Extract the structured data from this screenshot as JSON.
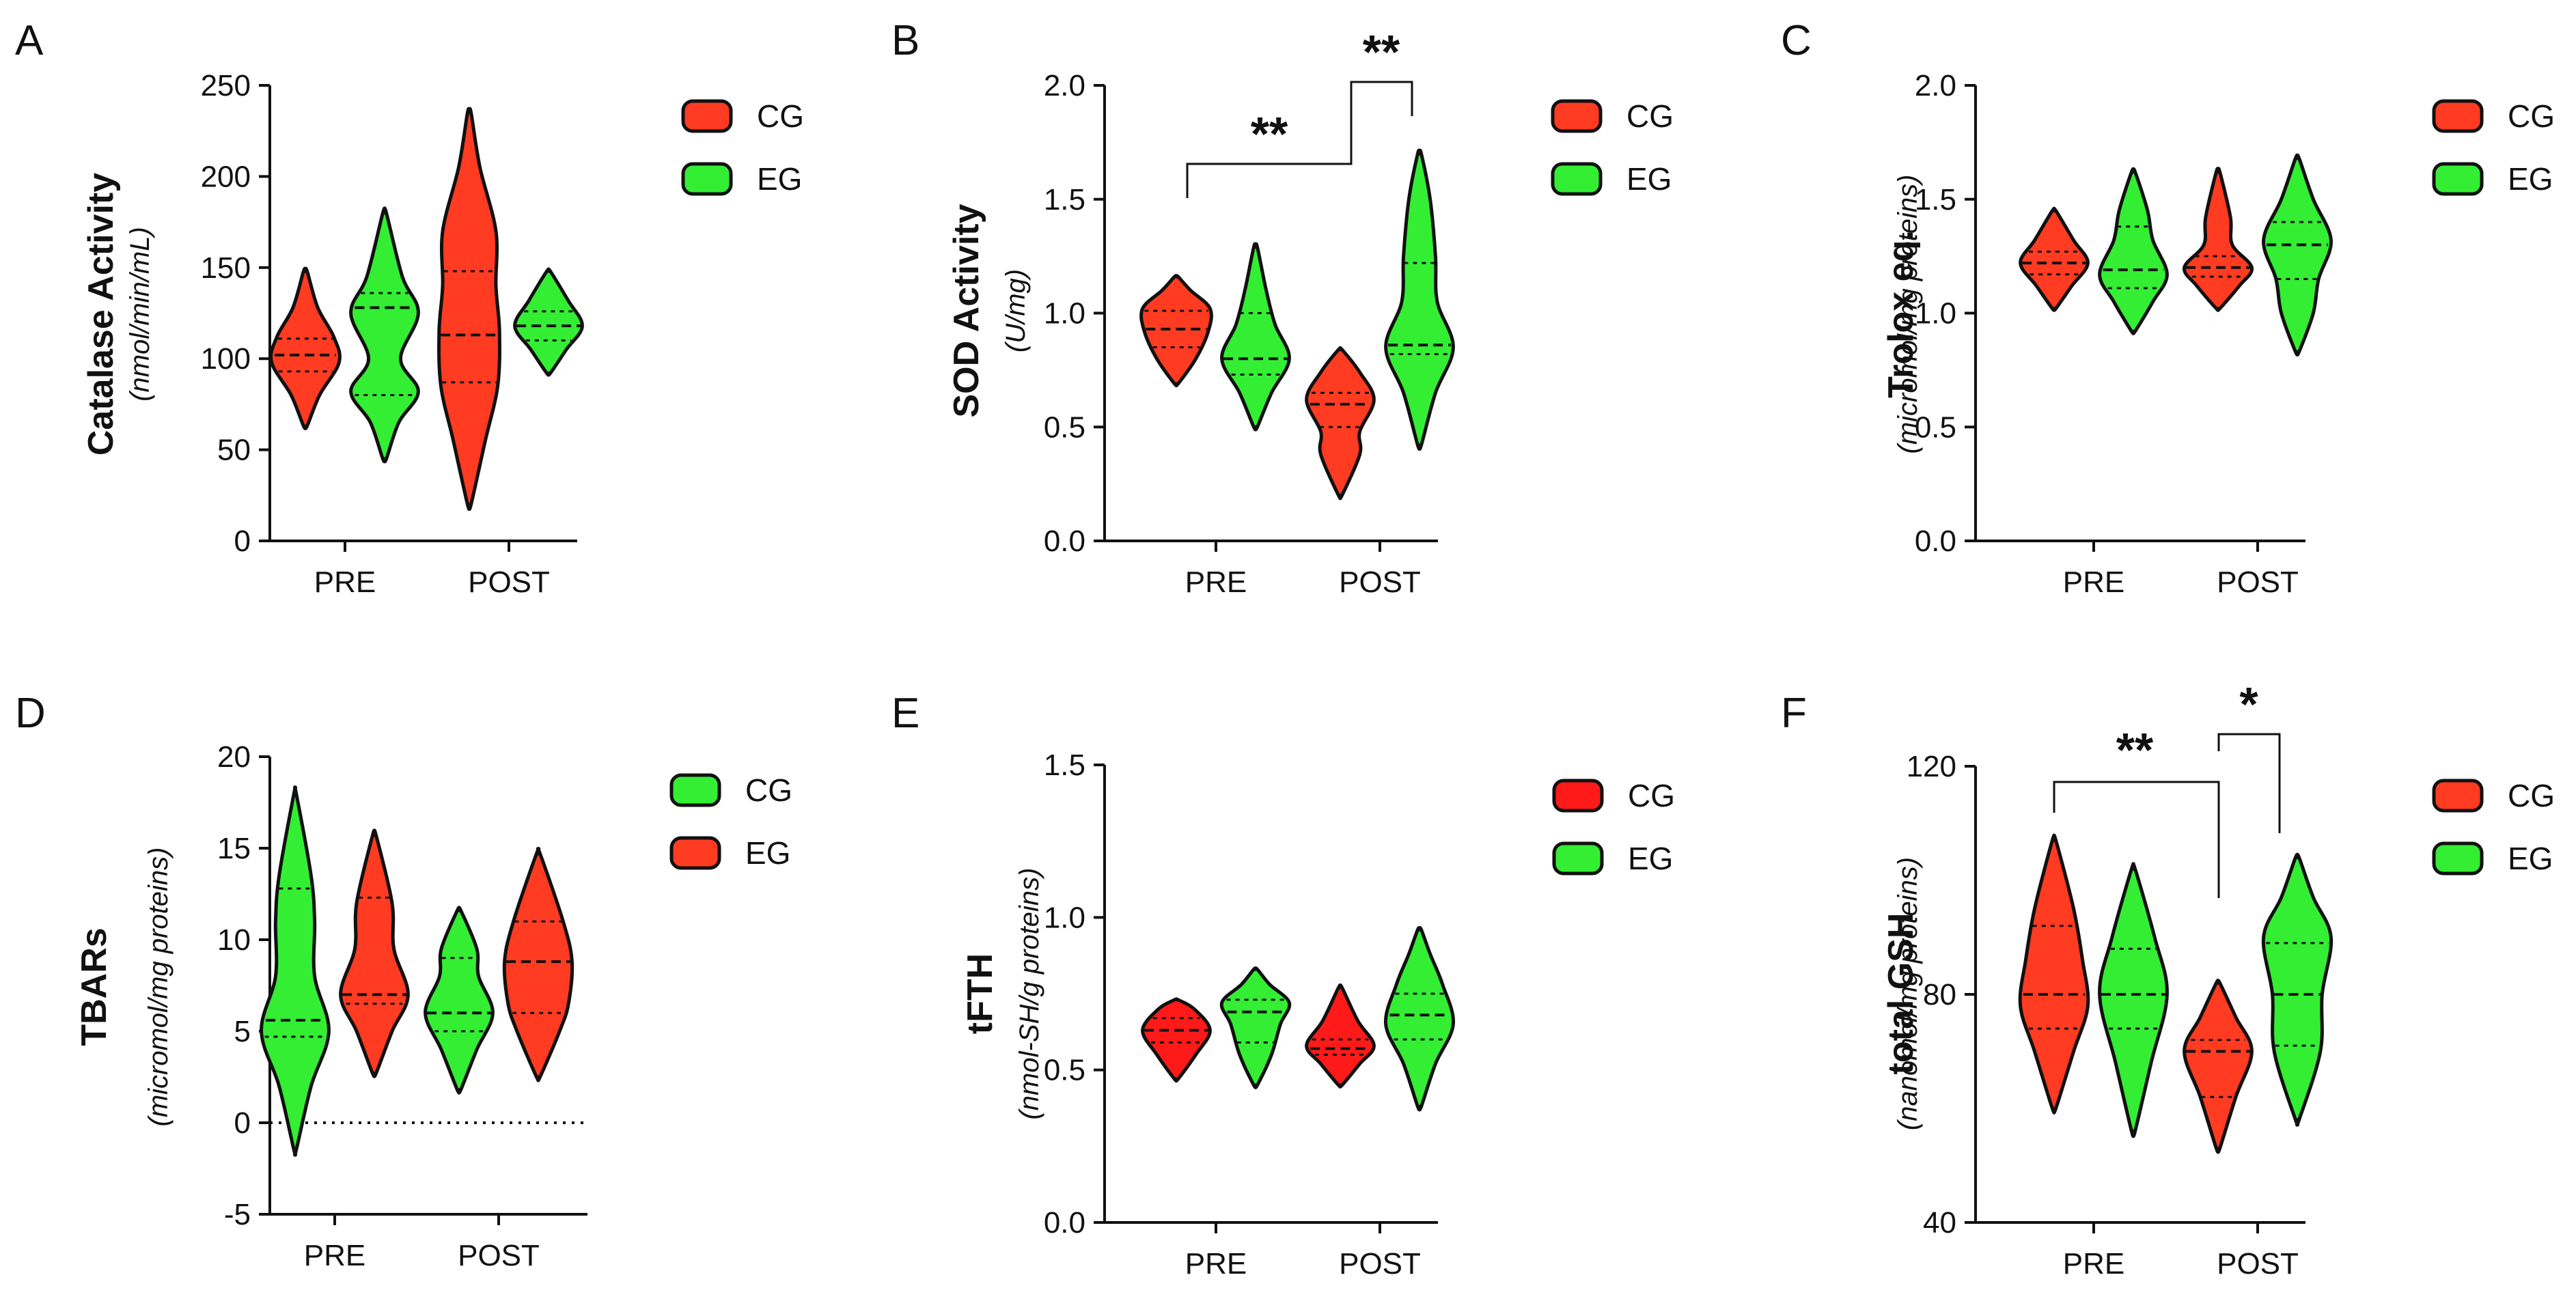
{
  "chart_data": [
    {
      "panel": "A",
      "type": "violin",
      "ylabel": "Catalase Activity",
      "yunit": "(nmol/min/mL)",
      "ylim": [
        0,
        250
      ],
      "yticks": [
        "0",
        "50",
        "100",
        "150",
        "200",
        "250"
      ],
      "ytick_values": [
        0,
        50,
        100,
        150,
        200,
        250
      ],
      "categories": [
        "PRE",
        "POST"
      ],
      "legend": [
        {
          "label": "CG",
          "color": "#ff3b22"
        },
        {
          "label": "EG",
          "color": "#33ee33"
        }
      ],
      "violins": [
        {
          "group": "CG",
          "category": "PRE",
          "color": "#ff3b22",
          "min": 63,
          "max": 148,
          "q1": 93,
          "median": 102,
          "q3": 111,
          "profile": [
            [
              63,
              0.05
            ],
            [
              80,
              0.4
            ],
            [
              98,
              0.95
            ],
            [
              112,
              0.8
            ],
            [
              128,
              0.35
            ],
            [
              148,
              0.05
            ]
          ]
        },
        {
          "group": "EG",
          "category": "PRE",
          "color": "#33ee33",
          "min": 45,
          "max": 180,
          "q1": 80,
          "median": 128,
          "q3": 136,
          "profile": [
            [
              45,
              0.05
            ],
            [
              65,
              0.4
            ],
            [
              82,
              0.95
            ],
            [
              100,
              0.45
            ],
            [
              125,
              0.95
            ],
            [
              145,
              0.5
            ],
            [
              180,
              0.05
            ]
          ]
        },
        {
          "group": "CG",
          "category": "POST",
          "color": "#ff3b22",
          "min": 20,
          "max": 235,
          "q1": 87,
          "median": 113,
          "q3": 148,
          "profile": [
            [
              20,
              0.05
            ],
            [
              55,
              0.45
            ],
            [
              85,
              0.8
            ],
            [
              115,
              0.85
            ],
            [
              140,
              0.75
            ],
            [
              170,
              0.75
            ],
            [
              205,
              0.3
            ],
            [
              235,
              0.05
            ]
          ]
        },
        {
          "group": "EG",
          "category": "POST",
          "color": "#33ee33",
          "min": 92,
          "max": 148,
          "q1": 110,
          "median": 118,
          "q3": 126,
          "profile": [
            [
              92,
              0.05
            ],
            [
              105,
              0.5
            ],
            [
              118,
              0.95
            ],
            [
              132,
              0.55
            ],
            [
              148,
              0.05
            ]
          ]
        }
      ]
    },
    {
      "panel": "B",
      "type": "violin",
      "ylabel": "SOD Activity",
      "yunit": "(U/mg)",
      "ylim": [
        0,
        2
      ],
      "yticks": [
        "0.0",
        "0.5",
        "1.0",
        "1.5",
        "2.0"
      ],
      "ytick_values": [
        0,
        0.5,
        1.0,
        1.5,
        2.0
      ],
      "categories": [
        "PRE",
        "POST"
      ],
      "legend": [
        {
          "label": "CG",
          "color": "#ff3b22"
        },
        {
          "label": "EG",
          "color": "#33ee33"
        }
      ],
      "violins": [
        {
          "group": "CG",
          "category": "PRE",
          "color": "#ff3b22",
          "min": 0.69,
          "max": 1.16,
          "q1": 0.85,
          "median": 0.93,
          "q3": 1.01,
          "profile": [
            [
              0.69,
              0.05
            ],
            [
              0.8,
              0.55
            ],
            [
              0.92,
              0.9
            ],
            [
              1.02,
              0.95
            ],
            [
              1.1,
              0.4
            ],
            [
              1.16,
              0.05
            ]
          ]
        },
        {
          "group": "EG",
          "category": "PRE",
          "color": "#33ee33",
          "min": 0.5,
          "max": 1.29,
          "q1": 0.73,
          "median": 0.8,
          "q3": 1.0,
          "profile": [
            [
              0.5,
              0.05
            ],
            [
              0.65,
              0.45
            ],
            [
              0.8,
              0.95
            ],
            [
              0.95,
              0.55
            ],
            [
              1.1,
              0.3
            ],
            [
              1.29,
              0.05
            ]
          ]
        },
        {
          "group": "CG",
          "category": "POST",
          "color": "#ff3b22",
          "min": 0.2,
          "max": 0.84,
          "q1": 0.5,
          "median": 0.6,
          "q3": 0.65,
          "profile": [
            [
              0.2,
              0.05
            ],
            [
              0.38,
              0.55
            ],
            [
              0.48,
              0.55
            ],
            [
              0.62,
              0.95
            ],
            [
              0.74,
              0.55
            ],
            [
              0.84,
              0.05
            ]
          ]
        },
        {
          "group": "EG",
          "category": "POST",
          "color": "#33ee33",
          "min": 0.42,
          "max": 1.7,
          "q1": 0.82,
          "median": 0.86,
          "q3": 1.22,
          "profile": [
            [
              0.42,
              0.05
            ],
            [
              0.65,
              0.45
            ],
            [
              0.85,
              0.95
            ],
            [
              1.05,
              0.5
            ],
            [
              1.25,
              0.45
            ],
            [
              1.5,
              0.3
            ],
            [
              1.7,
              0.05
            ]
          ]
        }
      ],
      "significance": [
        {
          "from": "CG PRE",
          "to": "CG POST",
          "label": "**"
        },
        {
          "from": "CG POST",
          "to": "EG POST",
          "label": "**"
        }
      ]
    },
    {
      "panel": "C",
      "type": "violin",
      "ylabel": "Trolox eq.",
      "yunit": "(micromol/mg proteins)",
      "ylim": [
        0,
        2
      ],
      "yticks": [
        "0.0",
        "0.5",
        "1.0",
        "1.5",
        "2.0"
      ],
      "ytick_values": [
        0,
        0.5,
        1.0,
        1.5,
        2.0
      ],
      "categories": [
        "PRE",
        "POST"
      ],
      "legend": [
        {
          "label": "CG",
          "color": "#ff3b22"
        },
        {
          "label": "EG",
          "color": "#33ee33"
        }
      ],
      "violins": [
        {
          "group": "CG",
          "category": "PRE",
          "color": "#ff3b22",
          "min": 1.02,
          "max": 1.45,
          "q1": 1.17,
          "median": 1.22,
          "q3": 1.27,
          "profile": [
            [
              1.02,
              0.05
            ],
            [
              1.12,
              0.5
            ],
            [
              1.22,
              0.95
            ],
            [
              1.32,
              0.55
            ],
            [
              1.45,
              0.05
            ]
          ]
        },
        {
          "group": "EG",
          "category": "PRE",
          "color": "#33ee33",
          "min": 0.92,
          "max": 1.62,
          "q1": 1.11,
          "median": 1.19,
          "q3": 1.38,
          "profile": [
            [
              0.92,
              0.05
            ],
            [
              1.05,
              0.55
            ],
            [
              1.17,
              0.95
            ],
            [
              1.32,
              0.55
            ],
            [
              1.45,
              0.4
            ],
            [
              1.62,
              0.05
            ]
          ]
        },
        {
          "group": "CG",
          "category": "POST",
          "color": "#ff3b22",
          "min": 1.02,
          "max": 1.62,
          "q1": 1.16,
          "median": 1.2,
          "q3": 1.25,
          "profile": [
            [
              1.02,
              0.05
            ],
            [
              1.12,
              0.6
            ],
            [
              1.2,
              0.95
            ],
            [
              1.3,
              0.4
            ],
            [
              1.42,
              0.35
            ],
            [
              1.62,
              0.05
            ]
          ]
        },
        {
          "group": "EG",
          "category": "POST",
          "color": "#33ee33",
          "min": 0.83,
          "max": 1.68,
          "q1": 1.15,
          "median": 1.3,
          "q3": 1.4,
          "profile": [
            [
              0.83,
              0.05
            ],
            [
              1.0,
              0.45
            ],
            [
              1.15,
              0.6
            ],
            [
              1.32,
              0.95
            ],
            [
              1.5,
              0.45
            ],
            [
              1.68,
              0.05
            ]
          ]
        }
      ]
    },
    {
      "panel": "D",
      "type": "violin",
      "ylabel": "TBARs",
      "yunit": "(micromol/mg proteins)",
      "ylim": [
        -5,
        20
      ],
      "yticks": [
        "-5",
        "0",
        "5",
        "10",
        "15",
        "20"
      ],
      "ytick_values": [
        -5,
        0,
        5,
        10,
        15,
        20
      ],
      "zero_line": true,
      "categories": [
        "PRE",
        "POST"
      ],
      "legend": [
        {
          "label": "CG",
          "color": "#33ee33"
        },
        {
          "label": "EG",
          "color": "#ff3b22"
        }
      ],
      "violins": [
        {
          "group": "CG",
          "category": "PRE",
          "color": "#33ee33",
          "min": -1.5,
          "max": 18,
          "q1": 4.7,
          "median": 5.6,
          "q3": 12.8,
          "profile": [
            [
              -1.5,
              0.03
            ],
            [
              2,
              0.45
            ],
            [
              5,
              0.95
            ],
            [
              8,
              0.55
            ],
            [
              11,
              0.55
            ],
            [
              13.5,
              0.45
            ],
            [
              18,
              0.03
            ]
          ]
        },
        {
          "group": "EG",
          "category": "PRE",
          "color": "#ff3b22",
          "min": 2.7,
          "max": 15.7,
          "q1": 6.5,
          "median": 7.0,
          "q3": 12.3,
          "profile": [
            [
              2.7,
              0.05
            ],
            [
              5,
              0.5
            ],
            [
              7,
              0.95
            ],
            [
              9.5,
              0.55
            ],
            [
              12,
              0.5
            ],
            [
              15.7,
              0.05
            ]
          ]
        },
        {
          "group": "CG",
          "category": "POST",
          "color": "#33ee33",
          "min": 1.8,
          "max": 11.6,
          "q1": 5.0,
          "median": 6.0,
          "q3": 9.0,
          "profile": [
            [
              1.8,
              0.05
            ],
            [
              4,
              0.5
            ],
            [
              6,
              0.95
            ],
            [
              8,
              0.55
            ],
            [
              9.5,
              0.5
            ],
            [
              11.6,
              0.05
            ]
          ]
        },
        {
          "group": "EG",
          "category": "POST",
          "color": "#ff3b22",
          "min": 2.5,
          "max": 14.7,
          "q1": 6.0,
          "median": 8.8,
          "q3": 11.0,
          "profile": [
            [
              2.5,
              0.05
            ],
            [
              5,
              0.6
            ],
            [
              6.5,
              0.85
            ],
            [
              8.8,
              0.95
            ],
            [
              11,
              0.7
            ],
            [
              14.7,
              0.05
            ]
          ]
        }
      ]
    },
    {
      "panel": "E",
      "type": "violin",
      "ylabel": "tFTH",
      "yunit": "(nmol-SH/g proteins)",
      "ylim": [
        0,
        1.5
      ],
      "yticks": [
        "0.0",
        "0.5",
        "1.0",
        "1.5"
      ],
      "ytick_values": [
        0,
        0.5,
        1.0,
        1.5
      ],
      "categories": [
        "PRE",
        "POST"
      ],
      "legend": [
        {
          "label": "CG",
          "color": "#ff1a1a"
        },
        {
          "label": "EG",
          "color": "#33ee33"
        }
      ],
      "violins": [
        {
          "group": "CG",
          "category": "PRE",
          "color": "#ff1a1a",
          "min": 0.47,
          "max": 0.73,
          "q1": 0.59,
          "median": 0.63,
          "q3": 0.67,
          "profile": [
            [
              0.47,
              0.05
            ],
            [
              0.55,
              0.55
            ],
            [
              0.63,
              0.95
            ],
            [
              0.7,
              0.5
            ],
            [
              0.73,
              0.05
            ]
          ]
        },
        {
          "group": "EG",
          "category": "PRE",
          "color": "#33ee33",
          "min": 0.45,
          "max": 0.83,
          "q1": 0.59,
          "median": 0.69,
          "q3": 0.73,
          "profile": [
            [
              0.45,
              0.05
            ],
            [
              0.55,
              0.45
            ],
            [
              0.65,
              0.7
            ],
            [
              0.72,
              0.95
            ],
            [
              0.78,
              0.4
            ],
            [
              0.83,
              0.05
            ]
          ]
        },
        {
          "group": "CG",
          "category": "POST",
          "color": "#ff1a1a",
          "min": 0.45,
          "max": 0.77,
          "q1": 0.55,
          "median": 0.57,
          "q3": 0.6,
          "profile": [
            [
              0.45,
              0.05
            ],
            [
              0.52,
              0.55
            ],
            [
              0.58,
              0.95
            ],
            [
              0.66,
              0.5
            ],
            [
              0.77,
              0.05
            ]
          ]
        },
        {
          "group": "EG",
          "category": "POST",
          "color": "#33ee33",
          "min": 0.38,
          "max": 0.96,
          "q1": 0.6,
          "median": 0.68,
          "q3": 0.75,
          "profile": [
            [
              0.38,
              0.05
            ],
            [
              0.52,
              0.45
            ],
            [
              0.65,
              0.95
            ],
            [
              0.78,
              0.65
            ],
            [
              0.88,
              0.3
            ],
            [
              0.96,
              0.05
            ]
          ]
        }
      ]
    },
    {
      "panel": "F",
      "type": "violin",
      "ylabel": "total GSH",
      "yunit": "(nanomol/mg proteins)",
      "ylim": [
        40,
        120
      ],
      "yticks": [
        "40",
        "80",
        "120"
      ],
      "ytick_values": [
        40,
        80,
        120
      ],
      "categories": [
        "PRE",
        "POST"
      ],
      "legend": [
        {
          "label": "CG",
          "color": "#ff3b22"
        },
        {
          "label": "EG",
          "color": "#33ee33"
        }
      ],
      "violins": [
        {
          "group": "CG",
          "category": "PRE",
          "color": "#ff3b22",
          "min": 60,
          "max": 107,
          "q1": 74,
          "median": 80,
          "q3": 92,
          "profile": [
            [
              60,
              0.05
            ],
            [
              70,
              0.55
            ],
            [
              78,
              0.95
            ],
            [
              86,
              0.8
            ],
            [
              95,
              0.55
            ],
            [
              107,
              0.05
            ]
          ]
        },
        {
          "group": "EG",
          "category": "PRE",
          "color": "#33ee33",
          "min": 56,
          "max": 102,
          "q1": 74,
          "median": 80,
          "q3": 88,
          "profile": [
            [
              56,
              0.05
            ],
            [
              68,
              0.5
            ],
            [
              80,
              0.95
            ],
            [
              90,
              0.6
            ],
            [
              102,
              0.05
            ]
          ]
        },
        {
          "group": "CG",
          "category": "POST",
          "color": "#ff3b22",
          "min": 53,
          "max": 82,
          "q1": 62,
          "median": 70,
          "q3": 72,
          "profile": [
            [
              53,
              0.05
            ],
            [
              62,
              0.5
            ],
            [
              70,
              0.95
            ],
            [
              76,
              0.5
            ],
            [
              82,
              0.05
            ]
          ]
        },
        {
          "group": "EG",
          "category": "POST",
          "color": "#33ee33",
          "min": 58,
          "max": 104,
          "q1": 71,
          "median": 80,
          "q3": 89,
          "profile": [
            [
              58,
              0.05
            ],
            [
              70,
              0.65
            ],
            [
              80,
              0.7
            ],
            [
              90,
              0.95
            ],
            [
              97,
              0.45
            ],
            [
              104,
              0.05
            ]
          ]
        }
      ],
      "significance": [
        {
          "from": "CG PRE",
          "to": "CG POST",
          "label": "**"
        },
        {
          "from": "CG POST",
          "to": "EG POST",
          "label": "*"
        }
      ]
    }
  ]
}
